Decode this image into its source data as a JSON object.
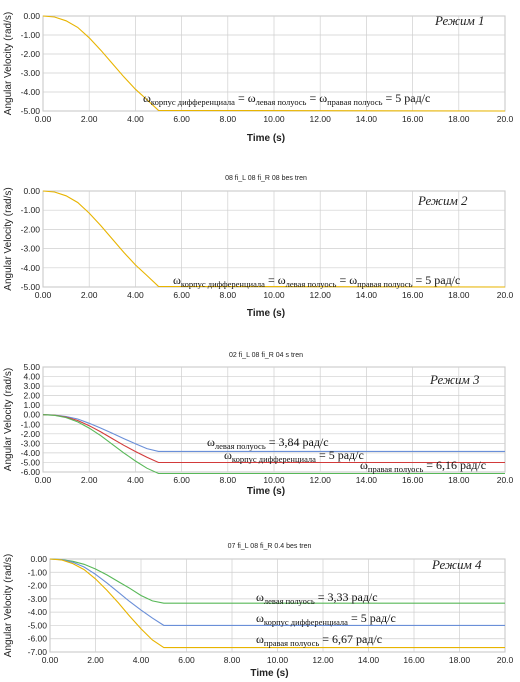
{
  "chart_data": [
    {
      "type": "line",
      "title": "",
      "mode_label": "Режим 1",
      "xlabel": "Time (s)",
      "ylabel": "Angular Velocity (rad/s)",
      "xlim": [
        0,
        20
      ],
      "ylim": [
        -5.0,
        0.0
      ],
      "xticks": [
        "0.00",
        "2.00",
        "4.00",
        "6.00",
        "8.00",
        "10.00",
        "12.00",
        "14.00",
        "16.00",
        "18.00",
        "20.0"
      ],
      "yticks": [
        "0.00",
        "-1.00",
        "-2.00",
        "-3.00",
        "-4.00",
        "-5.00"
      ],
      "series": [
        {
          "color": "#e8b400",
          "x": [
            0,
            0.5,
            1,
            1.5,
            2,
            2.5,
            3,
            3.5,
            4,
            4.5,
            5,
            20
          ],
          "y": [
            0,
            -0.05,
            -0.25,
            -0.6,
            -1.15,
            -1.8,
            -2.5,
            -3.2,
            -3.85,
            -4.4,
            -4.97,
            -5.0
          ]
        }
      ],
      "annotations": [
        {
          "parts": [
            "ω",
            "корпус дифференциала",
            " = ω",
            "левая полуось",
            " = ω",
            "правая полуось",
            " = 5 рад/с"
          ]
        }
      ]
    },
    {
      "type": "line",
      "title": "08 fi_L 08 fi_R 08 bes tren",
      "mode_label": "Режим 2",
      "xlabel": "Time (s)",
      "ylabel": "Angular Velocity (rad/s)",
      "xlim": [
        0,
        20
      ],
      "ylim": [
        -5.0,
        0.0
      ],
      "xticks": [
        "0.00",
        "2.00",
        "4.00",
        "6.00",
        "8.00",
        "10.00",
        "12.00",
        "14.00",
        "16.00",
        "18.00",
        "20.0"
      ],
      "yticks": [
        "0.00",
        "-1.00",
        "-2.00",
        "-3.00",
        "-4.00",
        "-5.00"
      ],
      "series": [
        {
          "color": "#e8b400",
          "x": [
            0,
            0.5,
            1,
            1.5,
            2,
            2.5,
            3,
            3.5,
            4,
            4.5,
            5,
            20
          ],
          "y": [
            0,
            -0.05,
            -0.25,
            -0.6,
            -1.15,
            -1.8,
            -2.5,
            -3.2,
            -3.85,
            -4.4,
            -4.97,
            -5.0
          ]
        }
      ],
      "annotations": [
        {
          "parts": [
            "ω",
            "корпус дифференциала",
            " = ω",
            "левая полуось",
            " = ω",
            "правая полуось",
            " = 5 рад/с"
          ]
        }
      ]
    },
    {
      "type": "line",
      "title": "02 fi_L 08 fi_R 04 s tren",
      "mode_label": "Режим 3",
      "xlabel": "Time (s)",
      "ylabel": "Angular Velocity (rad/s)",
      "xlim": [
        0,
        20
      ],
      "ylim": [
        -6.0,
        5.0
      ],
      "xticks": [
        "0.00",
        "2.00",
        "4.00",
        "6.00",
        "8.00",
        "10.00",
        "12.00",
        "14.00",
        "16.00",
        "18.00",
        "20.0"
      ],
      "yticks": [
        "5.00",
        "4.00",
        "3.00",
        "2.00",
        "1.00",
        "0.00",
        "-1.00",
        "-2.00",
        "-3.00",
        "-4.00",
        "-5.00",
        "-6.00"
      ],
      "series": [
        {
          "color": "#6a8fd8",
          "x": [
            0,
            0.5,
            1,
            1.5,
            2,
            2.5,
            3,
            3.5,
            4,
            4.5,
            5,
            20
          ],
          "y": [
            0,
            -0.04,
            -0.2,
            -0.45,
            -0.9,
            -1.4,
            -1.95,
            -2.5,
            -3.05,
            -3.55,
            -3.84,
            -3.84
          ]
        },
        {
          "color": "#d23a3a",
          "x": [
            0,
            0.5,
            1,
            1.5,
            2,
            2.5,
            3,
            3.5,
            4,
            4.5,
            5,
            20
          ],
          "y": [
            0,
            -0.05,
            -0.25,
            -0.6,
            -1.15,
            -1.8,
            -2.5,
            -3.2,
            -3.85,
            -4.45,
            -5.0,
            -5.0
          ]
        },
        {
          "color": "#58b858",
          "x": [
            0,
            0.5,
            1,
            1.5,
            2,
            2.5,
            3,
            3.5,
            4,
            4.5,
            5,
            20
          ],
          "y": [
            0,
            -0.06,
            -0.3,
            -0.75,
            -1.4,
            -2.2,
            -3.1,
            -4.0,
            -4.85,
            -5.6,
            -6.16,
            -6.16
          ]
        }
      ],
      "annotations": [
        {
          "parts": [
            "ω",
            "левая полуось",
            " = 3,84 рад/с"
          ]
        },
        {
          "parts": [
            "ω",
            "корпус дифференциала",
            " = 5 рад/с"
          ]
        },
        {
          "parts": [
            "ω",
            "правая полуось",
            " = 6,16 рад/с"
          ]
        }
      ]
    },
    {
      "type": "line",
      "title": "07 fi_L 08 fi_R 0.4 bes tren",
      "mode_label": "Режим 4",
      "xlabel": "Time (s)",
      "ylabel": "Angular Velocity (rad/s)",
      "xlim": [
        0,
        20
      ],
      "ylim": [
        -7.0,
        0.0
      ],
      "xticks": [
        "0.00",
        "2.00",
        "4.00",
        "6.00",
        "8.00",
        "10.00",
        "12.00",
        "14.00",
        "16.00",
        "18.00",
        "20.0"
      ],
      "yticks": [
        "0.00",
        "-1.00",
        "-2.00",
        "-3.00",
        "-4.00",
        "-5.00",
        "-6.00",
        "-7.00"
      ],
      "series": [
        {
          "color": "#58b858",
          "x": [
            0,
            0.5,
            1,
            1.5,
            2,
            2.5,
            3,
            3.5,
            4,
            4.5,
            5,
            20
          ],
          "y": [
            0,
            -0.04,
            -0.17,
            -0.4,
            -0.75,
            -1.2,
            -1.7,
            -2.2,
            -2.75,
            -3.15,
            -3.33,
            -3.33
          ]
        },
        {
          "color": "#6a8fd8",
          "x": [
            0,
            0.5,
            1,
            1.5,
            2,
            2.5,
            3,
            3.5,
            4,
            4.5,
            5,
            20
          ],
          "y": [
            0,
            -0.05,
            -0.25,
            -0.6,
            -1.15,
            -1.8,
            -2.5,
            -3.2,
            -3.85,
            -4.45,
            -5.0,
            -5.0
          ]
        },
        {
          "color": "#e8b400",
          "x": [
            0,
            0.5,
            1,
            1.5,
            2,
            2.5,
            3,
            3.5,
            4,
            4.5,
            5,
            20
          ],
          "y": [
            0,
            -0.07,
            -0.35,
            -0.8,
            -1.5,
            -2.35,
            -3.3,
            -4.3,
            -5.25,
            -6.1,
            -6.67,
            -6.67
          ]
        }
      ],
      "annotations": [
        {
          "parts": [
            "ω",
            "левая полуось",
            " = 3,33 рад/с"
          ]
        },
        {
          "parts": [
            "ω",
            "корпус дифференциала",
            " = 5 рад/с"
          ]
        },
        {
          "parts": [
            "ω",
            "правая полуось",
            " = 6,67 рад/с"
          ]
        }
      ]
    }
  ]
}
